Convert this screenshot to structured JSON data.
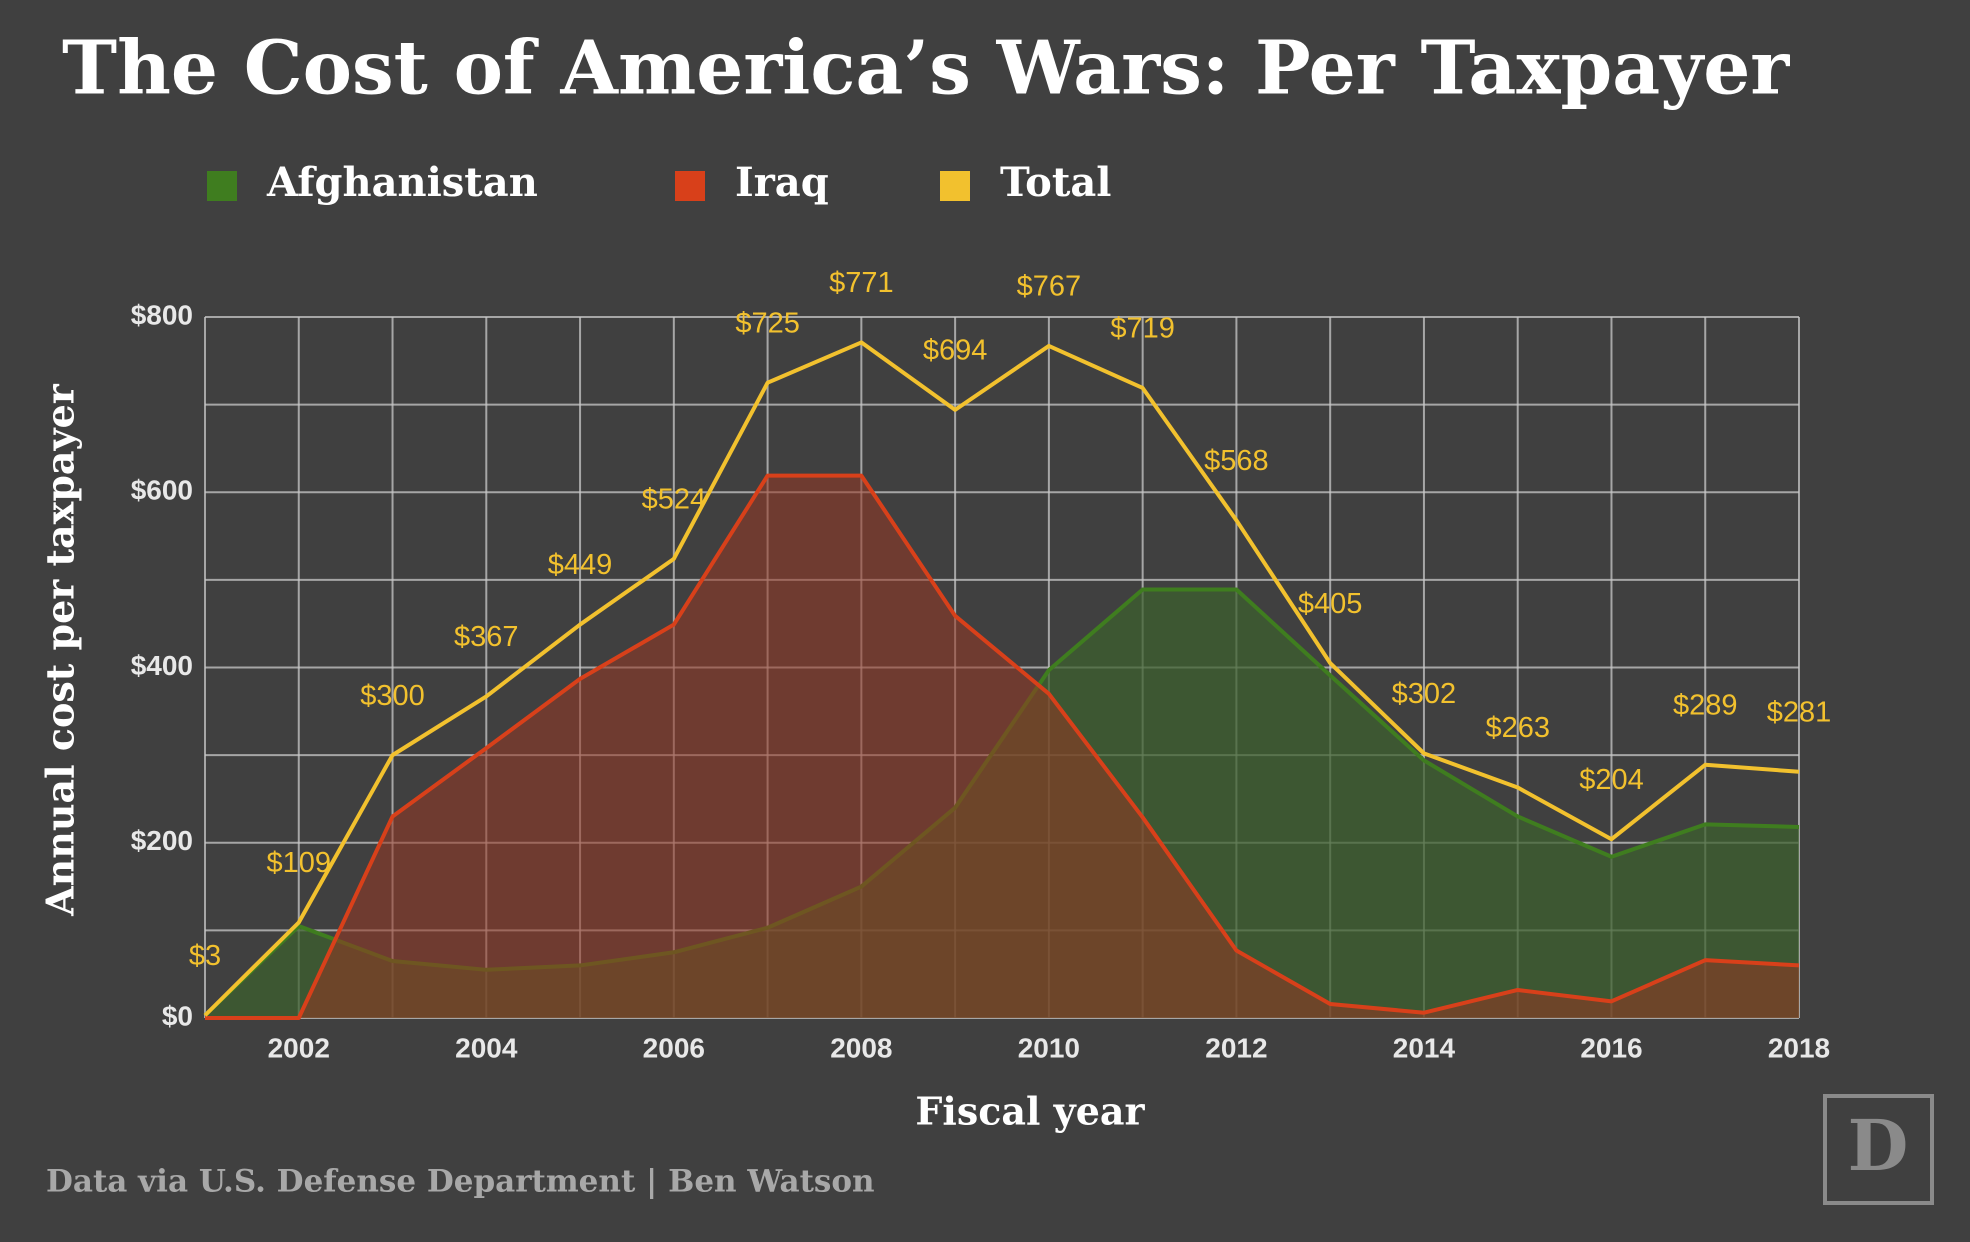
{
  "chart_data": {
    "type": "area",
    "title": "The Cost of America’s Wars: Per Taxpayer",
    "x_label": "Fiscal year",
    "y_label": "Annual cost per taxpayer",
    "source": "Data via U.S. Defense Department | Ben Watson",
    "logo": "D",
    "x": [
      2001,
      2002,
      2003,
      2004,
      2005,
      2006,
      2007,
      2008,
      2009,
      2010,
      2011,
      2012,
      2013,
      2014,
      2015,
      2016,
      2017,
      2018
    ],
    "series": [
      {
        "name": "Afghanistan",
        "color": "#3f7d1f",
        "fill": "rgba(60,95,45,0.72)",
        "values": [
          3,
          105,
          65,
          55,
          60,
          75,
          103,
          150,
          240,
          397,
          489,
          489,
          391,
          294,
          230,
          184,
          221,
          218
        ]
      },
      {
        "name": "Iraq",
        "color": "#d8401a",
        "fill": "rgba(150,55,35,0.55)",
        "values": [
          0,
          0,
          230,
          308,
          387,
          449,
          619,
          619,
          459,
          370,
          229,
          77,
          16,
          6,
          32,
          19,
          66,
          60
        ]
      },
      {
        "name": "Total",
        "color": "#f2c12e",
        "fill": "none",
        "values": [
          3,
          109,
          300,
          367,
          449,
          524,
          725,
          771,
          694,
          767,
          719,
          568,
          405,
          302,
          263,
          204,
          289,
          281
        ],
        "value_labels": [
          "$3",
          "$109",
          "$300",
          "$367",
          "$449",
          "$524",
          "$725",
          "$771",
          "$694",
          "$767",
          "$719",
          "$568",
          "$405",
          "$302",
          "$263",
          "$204",
          "$289",
          "$281"
        ]
      }
    ],
    "xlim": [
      2001,
      2018
    ],
    "xticks": [
      2002,
      2004,
      2006,
      2008,
      2010,
      2012,
      2014,
      2016,
      2018
    ],
    "minor_xticks": [
      2001,
      2003,
      2005,
      2007,
      2009,
      2011,
      2013,
      2015,
      2017
    ],
    "ylim": [
      0,
      800
    ],
    "yticks": [
      {
        "value": 0,
        "label": "$0"
      },
      {
        "value": 200,
        "label": "$200"
      },
      {
        "value": 400,
        "label": "$400"
      },
      {
        "value": 600,
        "label": "$600"
      },
      {
        "value": 800,
        "label": "$800"
      }
    ],
    "minor_yticks": [
      100,
      300,
      500,
      700
    ],
    "grid": true
  }
}
